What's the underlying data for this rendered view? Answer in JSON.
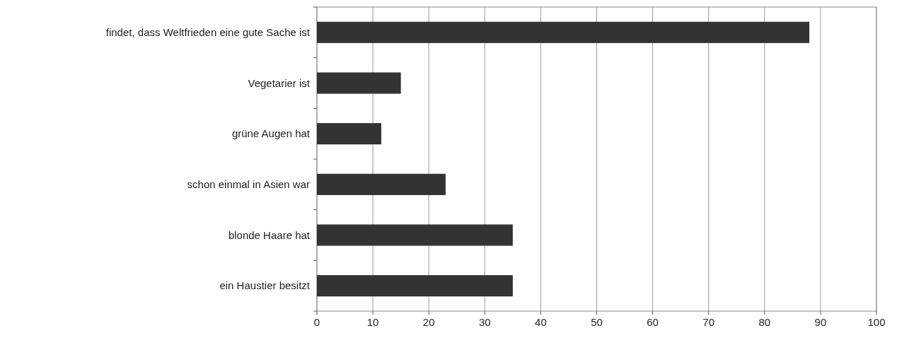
{
  "chart_data": {
    "type": "bar",
    "orientation": "horizontal",
    "categories": [
      "findet, dass Weltfrieden eine gute Sache ist",
      "Vegetarier ist",
      "grüne Augen hat",
      "schon einmal in Asien war",
      "blonde Haare hat",
      "ein Haustier besitzt"
    ],
    "values": [
      88,
      15,
      11.5,
      23,
      35,
      35
    ],
    "color": "#333333",
    "xlim": [
      0,
      100
    ],
    "xticks": [
      0,
      10,
      20,
      30,
      40,
      50,
      60,
      70,
      80,
      90,
      100
    ],
    "grid": "x"
  }
}
